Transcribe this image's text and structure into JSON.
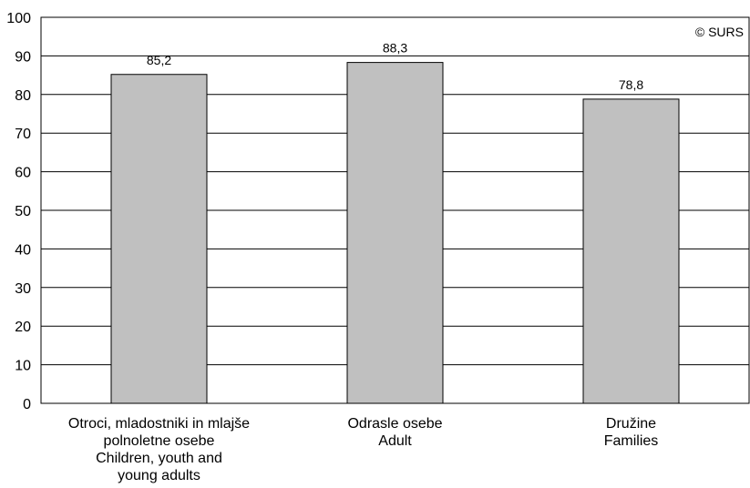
{
  "copyright": "© SURS",
  "chart_data": {
    "type": "bar",
    "categories": [
      [
        "Otroci, mladostniki in mlajše",
        "polnoletne osebe",
        "Children, youth and",
        "young adults"
      ],
      [
        "Odrasle osebe",
        "Adult"
      ],
      [
        "Družine",
        "Families"
      ]
    ],
    "values": [
      85.2,
      88.3,
      78.8
    ],
    "value_labels": [
      "85,2",
      "88,3",
      "78,8"
    ],
    "yticks": [
      "0",
      "10",
      "20",
      "30",
      "40",
      "50",
      "60",
      "70",
      "80",
      "90",
      "100"
    ],
    "ylim": [
      0,
      100
    ],
    "ystep": 10,
    "grid": true,
    "bar_color": "#c0c0c0",
    "bar_edge_color": "#000000"
  }
}
